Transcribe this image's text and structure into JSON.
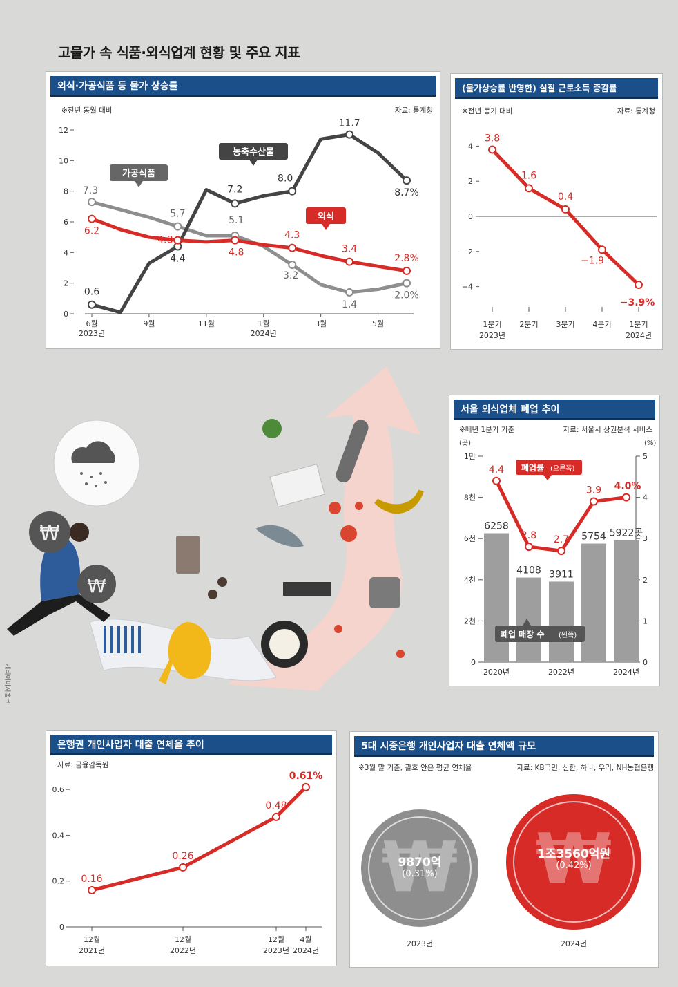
{
  "page_title": "고물가 속 식품·외식업계 현황 및 주요 지표",
  "illustration_credit": "게티이미지뱅크",
  "colors": {
    "header": "#1b4f8a",
    "red": "#d62b27",
    "gray": "#8e8e8e",
    "dark": "#444444"
  },
  "panel1": {
    "title": "외식·가공식품 등 물가 상승률",
    "note": "※전년 동월 대비",
    "source": "자료: 통계청",
    "callout_processed": "가공식품",
    "callout_agri": "농축수산물",
    "callout_dining": "외식"
  },
  "panel2": {
    "title": "(물가상승률 반영한) 실질 근로소득 증감률",
    "note": "※전년 동기 대비",
    "source": "자료: 통계청"
  },
  "panel3": {
    "title": "서울 외식업체 폐업 추이",
    "note": "※매년 1분기 기준",
    "source": "자료: 서울시 상권분석 서비스",
    "left_unit": "(곳)",
    "right_unit": "(%)",
    "callout_rate": "폐업률",
    "callout_rate_sub": "(오른쪽)",
    "callout_count": "폐업 매장 수",
    "callout_count_sub": "(왼쪽)"
  },
  "panel4": {
    "title": "은행권 개인사업자 대출 연체율 추이",
    "source": "자료: 금융감독원"
  },
  "panel5": {
    "title": "5대 시중은행 개인사업자 대출 연체액 규모",
    "note": "※3월 말 기준, 괄호 안은 평균 연체율",
    "source": "자료: KB국민, 신한, 하나, 우리, NH농협은행",
    "items": [
      {
        "year": "2023년",
        "amount": "9870억",
        "rate": "(0.31%)",
        "color": "#8e8e8e"
      },
      {
        "year": "2024년",
        "amount": "1조3560억원",
        "rate": "(0.42%)",
        "color": "#d62b27"
      }
    ]
  },
  "chart_data": [
    {
      "type": "line",
      "title": "외식·가공식품 등 물가 상승률",
      "x_ticks": [
        [
          "6월",
          "2023년"
        ],
        [
          "9월",
          ""
        ],
        [
          "11월",
          ""
        ],
        [
          "1월",
          "2024년"
        ],
        [
          "3월",
          ""
        ],
        [
          "5월",
          ""
        ]
      ],
      "ylim": [
        0,
        12
      ],
      "y_ticks": [
        "0",
        "2",
        "4",
        "6",
        "8",
        "10",
        "12"
      ],
      "series": [
        {
          "name": "가공식품",
          "color": "#8e8e8e",
          "values": [
            7.3,
            6.8,
            6.3,
            5.7,
            5.1,
            5.1,
            4.4,
            3.2,
            1.9,
            1.4,
            1.6,
            2.0
          ],
          "labels": {
            "0": "7.3",
            "3": "5.7",
            "5": "5.1",
            "7": "3.2",
            "9": "1.4",
            "11": "2.0%"
          }
        },
        {
          "name": "농축수산물",
          "color": "#444444",
          "values": [
            0.6,
            0.1,
            3.3,
            4.4,
            8.1,
            7.2,
            7.7,
            8.0,
            11.4,
            11.7,
            10.5,
            8.7
          ],
          "labels": {
            "0": "0.6",
            "3": "4.4",
            "5": "7.2",
            "7": "8.0",
            "9": "11.7",
            "11": "8.7%"
          }
        },
        {
          "name": "외식",
          "color": "#d62b27",
          "values": [
            6.2,
            5.5,
            5.0,
            4.8,
            4.7,
            4.8,
            4.5,
            4.3,
            3.8,
            3.4,
            3.1,
            2.8
          ],
          "labels": {
            "0": "6.2",
            "3": "4.8",
            "5": "4.8",
            "7": "4.3",
            "9": "3.4",
            "11": "2.8%"
          }
        }
      ]
    },
    {
      "type": "line",
      "title": "(물가상승률 반영한) 실질 근로소득 증감률",
      "x_ticks": [
        [
          "1분기",
          "2023년"
        ],
        [
          "2분기",
          ""
        ],
        [
          "3분기",
          ""
        ],
        [
          "4분기",
          ""
        ],
        [
          "1분기",
          "2024년"
        ]
      ],
      "ylim": [
        -5,
        5
      ],
      "y_ticks": [
        "-4",
        "-2",
        "0",
        "2",
        "4"
      ],
      "series": [
        {
          "name": "",
          "color": "#d62b27",
          "values": [
            3.8,
            1.6,
            0.4,
            -1.9,
            -3.9
          ],
          "labels": [
            "3.8",
            "1.6",
            "0.4",
            "−1.9",
            "−3.9%"
          ]
        }
      ]
    },
    {
      "type": "bar",
      "title": "서울 외식업체 폐업 추이",
      "categories": [
        "2020년",
        "2021년",
        "2022년",
        "2023년",
        "2024년"
      ],
      "x_tick_labels": [
        "2020년",
        "",
        "2022년",
        "",
        "2024년"
      ],
      "bar_series": {
        "name": "폐업 매장 수",
        "values": [
          6258,
          4108,
          3911,
          5754,
          5922
        ],
        "labels": [
          "6258",
          "4108",
          "3911",
          "5754",
          "5922곳"
        ]
      },
      "line_series": {
        "name": "폐업률",
        "values": [
          4.4,
          2.8,
          2.7,
          3.9,
          4.0
        ],
        "labels": [
          "4.4",
          "2.8",
          "2.7",
          "3.9",
          "4.0%"
        ]
      },
      "left_ylim": [
        0,
        10000
      ],
      "left_ticks": [
        "0",
        "2천",
        "4천",
        "6천",
        "8천",
        "1만"
      ],
      "right_ylim": [
        0,
        5
      ],
      "right_ticks": [
        "0",
        "1",
        "2",
        "3",
        "4",
        "5"
      ]
    },
    {
      "type": "line",
      "title": "은행권 개인사업자 대출 연체율 추이",
      "x_ticks": [
        [
          "12월",
          "2021년"
        ],
        [
          "12월",
          "2022년"
        ],
        [
          "12월",
          "2023년"
        ],
        [
          "4월",
          "2024년"
        ]
      ],
      "ylim": [
        0,
        0.7
      ],
      "y_ticks": [
        "0",
        "0.2",
        "0.4",
        "0.6"
      ],
      "series": [
        {
          "name": "",
          "color": "#d62b27",
          "values": [
            0.16,
            0.26,
            0.48,
            0.61
          ],
          "labels": [
            "0.16",
            "0.26",
            "0.48",
            "0.61%"
          ]
        }
      ]
    }
  ]
}
